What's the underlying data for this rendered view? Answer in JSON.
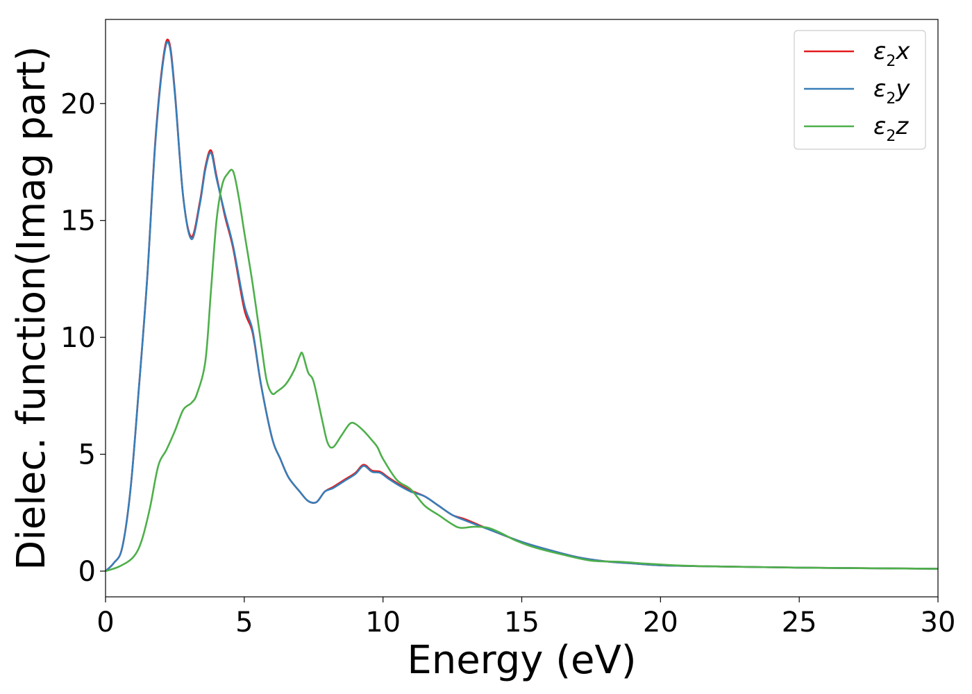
{
  "chart_data": {
    "type": "line",
    "xlabel": "Energy (eV)",
    "ylabel": "Dielec. function(Imag part)",
    "xlim": [
      0,
      30
    ],
    "ylim": [
      -1.1,
      23.6
    ],
    "xticks": [
      "0",
      "5",
      "10",
      "15",
      "20",
      "25",
      "30"
    ],
    "yticks": [
      "0",
      "5",
      "10",
      "15",
      "20"
    ],
    "xtick_values": [
      0,
      5,
      10,
      15,
      20,
      25,
      30
    ],
    "ytick_values": [
      0,
      5,
      10,
      15,
      20
    ],
    "grid": false,
    "legend_position": "top-right",
    "series": [
      {
        "name": "ε2x",
        "legend_base": "ε",
        "legend_sub": "2",
        "legend_var": "x",
        "color": "#e41a1c",
        "x": [
          0,
          0.3,
          0.6,
          0.9,
          1.2,
          1.5,
          1.8,
          2.1,
          2.3,
          2.5,
          2.8,
          3.1,
          3.4,
          3.6,
          3.8,
          4.0,
          4.3,
          4.6,
          5.0,
          5.3,
          5.6,
          6.0,
          6.3,
          6.6,
          7.0,
          7.3,
          7.6,
          7.9,
          8.2,
          8.6,
          9.0,
          9.3,
          9.6,
          9.9,
          10.2,
          10.6,
          11.0,
          11.5,
          12.0,
          12.5,
          13.0,
          14.0,
          15.0,
          16.0,
          17.0,
          18.0,
          19.0,
          20.0,
          22.0,
          25.0,
          28.0,
          30.0
        ],
        "values": [
          0,
          0.35,
          1.0,
          3.5,
          7.8,
          12.5,
          18.5,
          22.1,
          22.6,
          20.5,
          16.0,
          14.3,
          15.8,
          17.3,
          18.0,
          16.9,
          15.2,
          13.8,
          11.2,
          10.2,
          8.0,
          5.7,
          4.8,
          4.0,
          3.4,
          3.0,
          2.95,
          3.4,
          3.6,
          3.9,
          4.2,
          4.55,
          4.3,
          4.25,
          4.0,
          3.7,
          3.45,
          3.2,
          2.8,
          2.4,
          2.2,
          1.7,
          1.25,
          0.9,
          0.6,
          0.42,
          0.33,
          0.25,
          0.2,
          0.15,
          0.12,
          0.1
        ]
      },
      {
        "name": "ε2y",
        "legend_base": "ε",
        "legend_sub": "2",
        "legend_var": "y",
        "color": "#377eb8",
        "x": [
          0,
          0.3,
          0.6,
          0.9,
          1.2,
          1.5,
          1.8,
          2.1,
          2.3,
          2.5,
          2.8,
          3.1,
          3.4,
          3.6,
          3.8,
          4.0,
          4.3,
          4.6,
          5.0,
          5.3,
          5.6,
          6.0,
          6.3,
          6.6,
          7.0,
          7.3,
          7.6,
          7.9,
          8.2,
          8.6,
          9.0,
          9.3,
          9.6,
          9.9,
          10.2,
          10.6,
          11.0,
          11.5,
          12.0,
          12.5,
          13.0,
          14.0,
          15.0,
          16.0,
          17.0,
          18.0,
          19.0,
          20.0,
          22.0,
          25.0,
          28.0,
          30.0
        ],
        "values": [
          0,
          0.35,
          1.0,
          3.5,
          7.8,
          12.5,
          18.4,
          22.0,
          22.5,
          20.4,
          16.0,
          14.2,
          15.7,
          17.2,
          17.9,
          16.8,
          15.3,
          13.9,
          11.4,
          10.3,
          8.0,
          5.7,
          4.8,
          4.0,
          3.4,
          3.0,
          2.95,
          3.4,
          3.55,
          3.85,
          4.15,
          4.5,
          4.25,
          4.2,
          3.95,
          3.65,
          3.4,
          3.2,
          2.8,
          2.4,
          2.15,
          1.7,
          1.25,
          0.9,
          0.6,
          0.42,
          0.33,
          0.25,
          0.2,
          0.15,
          0.12,
          0.1
        ]
      },
      {
        "name": "ε2z",
        "legend_base": "ε",
        "legend_sub": "2",
        "legend_var": "z",
        "color": "#4daf4a",
        "x": [
          0,
          0.5,
          1.0,
          1.3,
          1.6,
          1.9,
          2.2,
          2.5,
          2.8,
          3.1,
          3.3,
          3.6,
          3.8,
          4.0,
          4.2,
          4.4,
          4.6,
          4.8,
          5.0,
          5.3,
          5.6,
          5.8,
          6.0,
          6.2,
          6.5,
          6.8,
          7.0,
          7.1,
          7.3,
          7.5,
          7.8,
          8.0,
          8.2,
          8.5,
          8.8,
          9.0,
          9.3,
          9.6,
          9.8,
          10.0,
          10.5,
          11.0,
          11.5,
          12.0,
          12.5,
          12.8,
          13.3,
          13.8,
          14.3,
          14.8,
          15.5,
          16.5,
          17.5,
          18.5,
          19.5,
          20.5,
          22.0,
          25.0,
          28.0,
          30.0
        ],
        "values": [
          0,
          0.2,
          0.6,
          1.3,
          2.7,
          4.5,
          5.2,
          6.0,
          6.9,
          7.2,
          7.6,
          9.0,
          12.0,
          15.0,
          16.5,
          17.0,
          17.1,
          16.0,
          14.5,
          12.3,
          9.8,
          8.2,
          7.6,
          7.7,
          8.0,
          8.6,
          9.2,
          9.3,
          8.5,
          8.1,
          6.5,
          5.5,
          5.3,
          5.8,
          6.3,
          6.3,
          6.0,
          5.6,
          5.3,
          4.8,
          3.9,
          3.5,
          2.8,
          2.4,
          2.0,
          1.85,
          1.9,
          1.85,
          1.6,
          1.3,
          1.0,
          0.7,
          0.45,
          0.4,
          0.32,
          0.25,
          0.2,
          0.15,
          0.12,
          0.1
        ]
      }
    ]
  }
}
